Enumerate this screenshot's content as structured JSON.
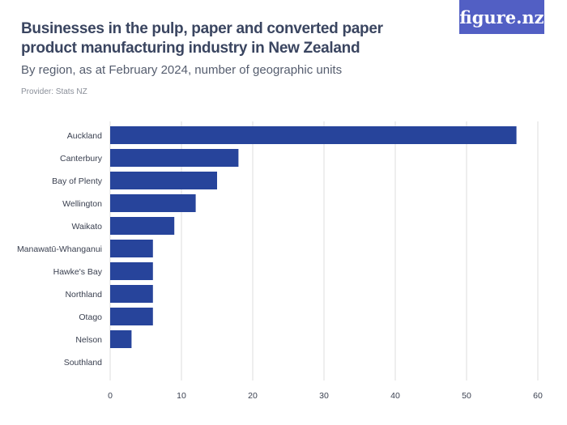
{
  "header": {
    "title": "Businesses in the pulp, paper and converted paper product manufacturing industry in New Zealand",
    "subtitle": "By region, as at February 2024, number of geographic units",
    "provider": "Provider: Stats NZ",
    "logo": "figure.nz"
  },
  "colors": {
    "bar": "#27449b",
    "grid": "#dddddd",
    "logo_bg": "#525fc4"
  },
  "chart_data": {
    "type": "bar",
    "orientation": "horizontal",
    "title": "Businesses in the pulp, paper and converted paper product manufacturing industry in New Zealand",
    "subtitle": "By region, as at February 2024, number of geographic units",
    "categories": [
      "Auckland",
      "Canterbury",
      "Bay of Plenty",
      "Wellington",
      "Waikato",
      "Manawatū-Whanganui",
      "Hawke's Bay",
      "Northland",
      "Otago",
      "Nelson",
      "Southland"
    ],
    "values": [
      57,
      18,
      15,
      12,
      9,
      6,
      6,
      6,
      6,
      3,
      0
    ],
    "xlim": [
      0,
      60
    ],
    "xticks": [
      "0",
      "10",
      "20",
      "30",
      "40",
      "50",
      "60"
    ],
    "grid": true,
    "xlabel": "",
    "ylabel": ""
  }
}
